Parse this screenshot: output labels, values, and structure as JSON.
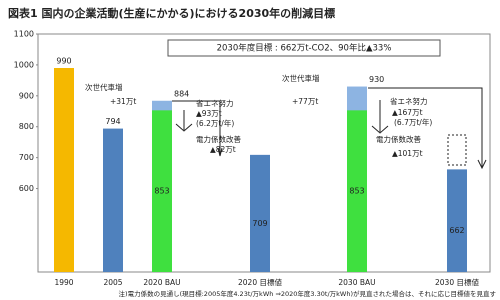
{
  "chart_data": {
    "type": "bar",
    "title": "図表1 国内の企業活動(生産にかかる)における2030年の削減目標",
    "categories": [
      "1990",
      "2005",
      "2020 BAU",
      "2020 目標値",
      "2030 BAU",
      "2030 目標値"
    ],
    "series": [
      {
        "name": "total",
        "colors": [
          "#f5b800",
          "#4f81bd",
          "#8db4e2",
          "#4f81bd",
          "#8db4e2",
          "#4f81bd"
        ],
        "values": [
          990,
          794,
          884,
          709,
          930,
          662
        ]
      },
      {
        "name": "BAU",
        "color": "#3fe03f",
        "values": [
          null,
          null,
          853,
          null,
          853,
          null
        ]
      }
    ],
    "ylim": [
      330,
      1100
    ],
    "yticks": [
      600,
      700,
      800,
      900,
      1000,
      1100
    ],
    "target_box": "2030年度目標 : 662万t-CO2、90年比▲33%",
    "annotations": [
      "次世代車増",
      "+31万t",
      "省エネ努力",
      "▲93万t",
      "(6.2万t/年)",
      "電力係数改善",
      "▲82万t",
      "次世代車増",
      "+77万t",
      "省エネ努力",
      "▲167万t",
      "(6.7万t/年)",
      "電力係数改善",
      "▲101万t"
    ],
    "note": "注)電力係数の見通し(現目標:2005年度4.23t/万kWh ⇒2020年度3.30t/万kWh)が見直された場合は、それに応じ目標値を見直す"
  }
}
